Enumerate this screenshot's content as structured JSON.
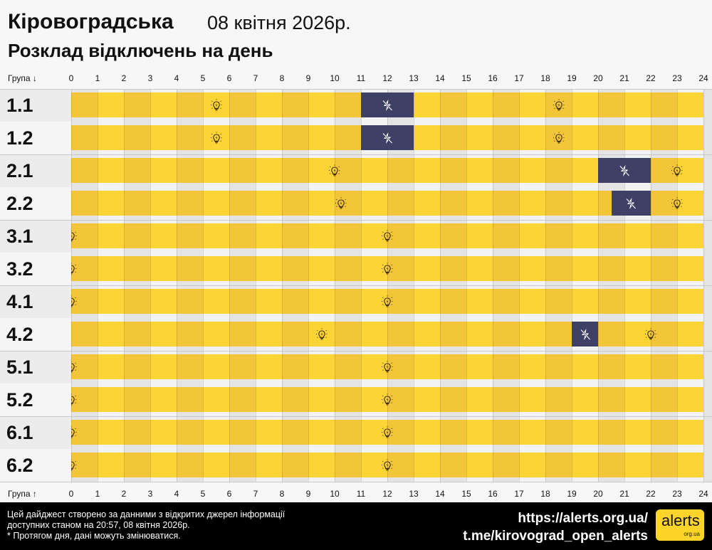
{
  "header": {
    "region": "Кіровоградська",
    "date": "08 квітня 2026р.",
    "subtitle": "Розклад відключень на день"
  },
  "axis": {
    "top_label": "Група ↓",
    "bottom_label": "Група ↑",
    "hours": [
      "0",
      "1",
      "2",
      "3",
      "4",
      "5",
      "6",
      "7",
      "8",
      "9",
      "10",
      "11",
      "12",
      "13",
      "14",
      "15",
      "16",
      "17",
      "18",
      "19",
      "20",
      "21",
      "22",
      "23",
      "24"
    ]
  },
  "colors": {
    "power_on_dark": "#f3c63a",
    "power_on_light": "#fdd435",
    "power_off": "#3f4066",
    "bulb": "#3a2a00"
  },
  "legend_icons": {
    "on_change": "lightbulb-icon",
    "off": "power-off-lightning-icon"
  },
  "groups": [
    {
      "label": "1.1",
      "off": [
        [
          11,
          13
        ]
      ],
      "bulbs": [
        5.5,
        18.5
      ]
    },
    {
      "label": "1.2",
      "off": [
        [
          11,
          13
        ]
      ],
      "bulbs": [
        5.5,
        18.5
      ]
    },
    {
      "label": "2.1",
      "off": [
        [
          20,
          22
        ]
      ],
      "bulbs": [
        10,
        23
      ]
    },
    {
      "label": "2.2",
      "off": [
        [
          20.5,
          22
        ]
      ],
      "bulbs": [
        10.25,
        23
      ]
    },
    {
      "label": "3.1",
      "off": [],
      "bulbs": [
        0,
        12
      ]
    },
    {
      "label": "3.2",
      "off": [],
      "bulbs": [
        0,
        12
      ]
    },
    {
      "label": "4.1",
      "off": [],
      "bulbs": [
        0,
        12
      ]
    },
    {
      "label": "4.2",
      "off": [
        [
          19,
          20
        ]
      ],
      "bulbs": [
        9.5,
        22
      ]
    },
    {
      "label": "5.1",
      "off": [],
      "bulbs": [
        0,
        12
      ]
    },
    {
      "label": "5.2",
      "off": [],
      "bulbs": [
        0,
        12
      ]
    },
    {
      "label": "6.1",
      "off": [],
      "bulbs": [
        0,
        12
      ]
    },
    {
      "label": "6.2",
      "off": [],
      "bulbs": [
        0,
        12
      ]
    }
  ],
  "footer": {
    "note_line1": "Цей дайджест створено за данними з відкритих джерел інформації",
    "note_line2": "доступних станом на 20:57, 08 квітня 2026р.",
    "note_line3": "* Протягом дня, дані можуть змінюватися.",
    "link_site": "https://alerts.org.ua/",
    "link_telegram": "t.me/kirovograd_open_alerts",
    "logo_text": "alerts",
    "logo_sub": "org.ua"
  }
}
